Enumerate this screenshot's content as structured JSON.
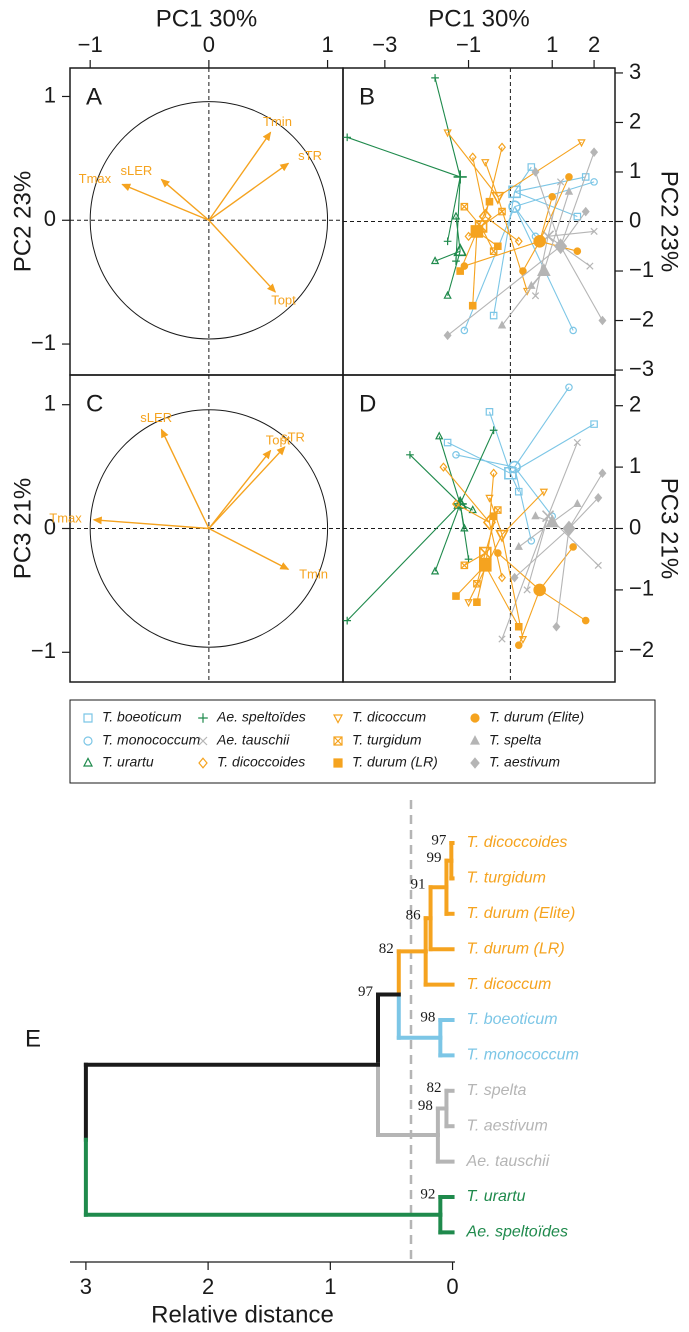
{
  "chart_data": [
    {
      "type": "arrows",
      "panel": "A",
      "xlabel": "PC1 30%",
      "ylabel": "PC2 23%",
      "color": "#f5a31f",
      "unit_circle": true,
      "zero_lines": true,
      "xlim": [
        -1.17,
        1.13
      ],
      "ylim": [
        -1.25,
        1.23
      ],
      "xticks": [
        {
          "value": -1,
          "label": "−1"
        },
        0,
        1
      ],
      "yticks": [
        {
          "value": -1,
          "label": "−1"
        },
        0,
        1
      ],
      "arrows": [
        {
          "label": "Tmin",
          "x": 0.52,
          "y": 0.71
        },
        {
          "label": "sTR",
          "x": 0.67,
          "y": 0.46
        },
        {
          "label": "sLER",
          "x": -0.4,
          "y": 0.33
        },
        {
          "label": "Tmax",
          "x": -0.73,
          "y": 0.29
        },
        {
          "label": "Topt",
          "x": 0.56,
          "y": -0.58
        }
      ]
    },
    {
      "type": "scatter",
      "panel": "B",
      "xlabel": "PC1 30%",
      "ylabel": "PC2 23%",
      "zero_lines": true,
      "xlim": [
        -4,
        2.5
      ],
      "ylim": [
        -3.1,
        3.1
      ],
      "xticks": [
        {
          "value": -3,
          "label": "−3"
        },
        {
          "value": -1,
          "label": "−1"
        },
        1,
        2
      ],
      "yticks": [
        3,
        2,
        1,
        0,
        {
          "value": -1,
          "label": "−1"
        },
        {
          "value": -2,
          "label": "−2"
        },
        {
          "value": -3,
          "label": "−3"
        }
      ],
      "series": [
        {
          "name": "T. boeoticum",
          "color": "#7cc6e6",
          "marker": "square",
          "centroid": [
            0.1,
            0.6
          ],
          "x": [
            0.5,
            1.8,
            -0.4,
            1.6
          ],
          "y": [
            1.1,
            0.9,
            -1.9,
            0.1
          ]
        },
        {
          "name": "T. monococcum",
          "color": "#7cc6e6",
          "marker": "circle",
          "centroid": [
            0.1,
            0.3
          ],
          "x": [
            -1.1,
            1.5,
            0.6,
            2.0
          ],
          "y": [
            -2.2,
            -2.2,
            -0.3,
            0.8
          ]
        },
        {
          "name": "T. urartu",
          "color": "#1f8a4c",
          "marker": "triangle",
          "centroid": [
            -1.2,
            -0.6
          ],
          "x": [
            -1.5,
            -1.3,
            -1.8
          ],
          "y": [
            -1.5,
            0.1,
            -0.8
          ]
        },
        {
          "name": "Ae. speltoïdes",
          "color": "#1f8a4c",
          "marker": "plus",
          "centroid": [
            -1.2,
            0.9
          ],
          "x": [
            -1.8,
            -3.9,
            -1.5,
            -1.3
          ],
          "y": [
            2.9,
            1.7,
            -0.4,
            -0.8
          ]
        },
        {
          "name": "Ae. tauschii",
          "color": "#b5b5b5",
          "marker": "x",
          "centroid": [
            0.9,
            -0.3
          ],
          "x": [
            1.2,
            2.0,
            0.6,
            1.9
          ],
          "y": [
            0.8,
            -0.2,
            -1.5,
            -0.9
          ]
        },
        {
          "name": "T. dicoccoides",
          "color": "#f5a31f",
          "marker": "diamond",
          "centroid": [
            -0.6,
            0.1
          ],
          "x": [
            -0.9,
            -0.2,
            0.2,
            -1.0
          ],
          "y": [
            1.3,
            1.5,
            -0.4,
            -0.3
          ]
        },
        {
          "name": "T. dicoccum",
          "color": "#f5a31f",
          "marker": "triangle-down",
          "centroid": [
            -0.3,
            0.5
          ],
          "x": [
            -1.5,
            1.7,
            -0.6,
            0.4
          ],
          "y": [
            1.8,
            1.6,
            1.2,
            -1.4
          ]
        },
        {
          "name": "T. turgidum",
          "color": "#f5a31f",
          "marker": "square-x",
          "centroid": [
            -0.7,
            -0.1
          ],
          "x": [
            -0.4,
            -1.1,
            -0.2
          ],
          "y": [
            -0.6,
            0.3,
            0.2
          ]
        },
        {
          "name": "T. durum (LR)",
          "color": "#f5a31f",
          "marker": "square-filled",
          "centroid": [
            -0.8,
            -0.2
          ],
          "x": [
            -1.2,
            -0.5,
            -0.9,
            -0.3
          ],
          "y": [
            -1.0,
            0.4,
            -1.7,
            -0.5
          ]
        },
        {
          "name": "T. durum (Elite)",
          "color": "#f5a31f",
          "marker": "circle-filled",
          "centroid": [
            0.7,
            -0.4
          ],
          "x": [
            1.0,
            1.4,
            1.6,
            -1.1,
            0.3
          ],
          "y": [
            0.5,
            0.9,
            -0.6,
            -0.9,
            -1.0
          ]
        },
        {
          "name": "T. spelta",
          "color": "#b5b5b5",
          "marker": "triangle-filled",
          "centroid": [
            0.8,
            -1.0
          ],
          "x": [
            -0.2,
            1.4,
            0.5
          ],
          "y": [
            -2.1,
            0.6,
            -1.3
          ]
        },
        {
          "name": "T. aestivum",
          "color": "#b5b5b5",
          "marker": "diamond-filled",
          "centroid": [
            1.2,
            -0.5
          ],
          "x": [
            -1.5,
            2.2,
            2.0,
            1.8,
            0.6
          ],
          "y": [
            -2.3,
            -2.0,
            1.4,
            0.2,
            1.0
          ]
        }
      ]
    },
    {
      "type": "arrows",
      "panel": "C",
      "ylabel": "PC3 21%",
      "color": "#f5a31f",
      "unit_circle": true,
      "zero_lines": true,
      "xlim": [
        -1.17,
        1.13
      ],
      "ylim": [
        -1.24,
        1.24
      ],
      "yticks": [
        {
          "value": -1,
          "label": "−1"
        },
        0,
        1
      ],
      "arrows": [
        {
          "label": "sLER",
          "x": -0.4,
          "y": 0.8
        },
        {
          "label": "Tmax",
          "x": -0.97,
          "y": 0.07
        },
        {
          "label": "Topt",
          "x": 0.52,
          "y": 0.63
        },
        {
          "label": "sTR",
          "x": 0.64,
          "y": 0.66
        },
        {
          "label": "Tmin",
          "x": 0.67,
          "y": -0.33
        }
      ]
    },
    {
      "type": "scatter",
      "panel": "D",
      "ylabel": "PC3 21%",
      "zero_lines": true,
      "xlim": [
        -4,
        2.5
      ],
      "ylim": [
        -2.5,
        2.5
      ],
      "yticks": [
        2,
        1,
        0,
        {
          "value": -1,
          "label": "−1"
        },
        {
          "value": -2,
          "label": "−2"
        }
      ],
      "series": [
        {
          "color": "#7cc6e6",
          "marker": "square",
          "centroid": [
            0.0,
            0.9
          ],
          "x": [
            -0.5,
            2.0,
            -1.5,
            0.2
          ],
          "y": [
            1.9,
            1.7,
            1.4,
            0.6
          ]
        },
        {
          "color": "#7cc6e6",
          "marker": "circle",
          "centroid": [
            0.1,
            1.0
          ],
          "x": [
            1.4,
            -1.3,
            0.5,
            1.0
          ],
          "y": [
            2.3,
            1.2,
            -0.2,
            0.2
          ]
        },
        {
          "color": "#1f8a4c",
          "marker": "triangle",
          "centroid": [
            -1.2,
            0.4
          ],
          "x": [
            -1.7,
            -1.8,
            -0.9,
            -1.1
          ],
          "y": [
            1.5,
            -0.7,
            0.3,
            0.0
          ]
        },
        {
          "color": "#1f8a4c",
          "marker": "plus",
          "centroid": [
            -1.2,
            0.4
          ],
          "x": [
            -3.9,
            -2.4,
            -0.4,
            -1.0
          ],
          "y": [
            -1.5,
            1.2,
            1.6,
            -0.5
          ]
        },
        {
          "color": "#b5b5b5",
          "marker": "x",
          "centroid": [
            0.9,
            0.2
          ],
          "x": [
            1.6,
            2.1,
            -0.2,
            0.4
          ],
          "y": [
            1.4,
            -0.6,
            -1.8,
            -1.0
          ]
        },
        {
          "color": "#f5a31f",
          "marker": "diamond",
          "centroid": [
            -0.5,
            0.1
          ],
          "x": [
            -1.6,
            -0.4,
            -0.2,
            -1.3
          ],
          "y": [
            1.0,
            0.9,
            -0.8,
            0.4
          ]
        },
        {
          "color": "#f5a31f",
          "marker": "triangle-down",
          "centroid": [
            -0.2,
            -0.1
          ],
          "x": [
            -1.0,
            0.8,
            -0.5,
            0.3
          ],
          "y": [
            -1.2,
            0.6,
            0.5,
            -1.8
          ]
        },
        {
          "color": "#f5a31f",
          "marker": "square-x",
          "centroid": [
            -0.6,
            -0.4
          ],
          "x": [
            -1.1,
            -0.3,
            -0.8
          ],
          "y": [
            -0.6,
            0.3,
            -0.9
          ]
        },
        {
          "color": "#f5a31f",
          "marker": "square-filled",
          "centroid": [
            -0.6,
            -0.6
          ],
          "x": [
            -1.3,
            -0.8,
            0.2,
            -0.4
          ],
          "y": [
            -1.1,
            -1.2,
            -1.6,
            0.2
          ]
        },
        {
          "color": "#f5a31f",
          "marker": "circle-filled",
          "centroid": [
            0.7,
            -1.0
          ],
          "x": [
            1.5,
            0.2,
            1.8,
            -0.3
          ],
          "y": [
            -0.3,
            -1.9,
            -1.5,
            -0.4
          ]
        },
        {
          "color": "#b5b5b5",
          "marker": "triangle-filled",
          "centroid": [
            1.0,
            0.1
          ],
          "x": [
            0.2,
            1.6,
            0.6
          ],
          "y": [
            -0.3,
            0.4,
            0.2
          ]
        },
        {
          "color": "#b5b5b5",
          "marker": "diamond-filled",
          "centroid": [
            1.4,
            0.0
          ],
          "x": [
            2.2,
            0.1,
            2.1,
            1.1
          ],
          "y": [
            0.9,
            -0.8,
            0.5,
            -1.6
          ]
        }
      ]
    },
    {
      "type": "dendrogram",
      "panel": "E",
      "xlabel": "Relative distance",
      "xlim": [
        3.13,
        -0.02
      ],
      "xticks": [
        3,
        2,
        1,
        0
      ],
      "cutoff": 0.34,
      "leaves": [
        {
          "name": "T. dicoccoides",
          "color": "#f5a31f"
        },
        {
          "name": "T. turgidum",
          "color": "#f5a31f"
        },
        {
          "name": "T. durum (Elite)",
          "color": "#f5a31f"
        },
        {
          "name": "T. durum (LR)",
          "color": "#f5a31f"
        },
        {
          "name": "T. dicoccum",
          "color": "#f5a31f"
        },
        {
          "name": "T. boeoticum",
          "color": "#7cc6e6"
        },
        {
          "name": "T. monococcum",
          "color": "#7cc6e6"
        },
        {
          "name": "T. spelta",
          "color": "#b5b5b5"
        },
        {
          "name": "T. aestivum",
          "color": "#b5b5b5"
        },
        {
          "name": "Ae. tauschii",
          "color": "#b5b5b5"
        },
        {
          "name": "T. urartu",
          "color": "#1f8a4c"
        },
        {
          "name": "Ae. speltoïdes",
          "color": "#1f8a4c"
        }
      ],
      "nodes": [
        {
          "children": [
            0,
            1
          ],
          "height": 0.01,
          "label": 97,
          "color": "#f5a31f"
        },
        {
          "children": [
            12,
            2
          ],
          "height": 0.05,
          "label": 99,
          "color": "#f5a31f"
        },
        {
          "children": [
            13,
            3
          ],
          "height": 0.18,
          "label": 91,
          "color": "#f5a31f"
        },
        {
          "children": [
            14,
            4
          ],
          "height": 0.22,
          "label": 86,
          "color": "#f5a31f"
        },
        {
          "children": [
            5,
            6
          ],
          "height": 0.1,
          "label": 98,
          "color": "#7cc6e6"
        },
        {
          "children": [
            15,
            16
          ],
          "height": 0.44,
          "label": 82,
          "color": "#1a1a1a"
        },
        {
          "children": [
            7,
            8
          ],
          "height": 0.05,
          "label": 82,
          "color": "#b5b5b5"
        },
        {
          "children": [
            18,
            9
          ],
          "height": 0.12,
          "label": 98,
          "color": "#b5b5b5"
        },
        {
          "children": [
            17,
            19
          ],
          "height": 0.61,
          "label": 97,
          "color": "#1a1a1a"
        },
        {
          "children": [
            10,
            11
          ],
          "height": 0.1,
          "label": 92,
          "color": "#1f8a4c"
        },
        {
          "children": [
            20,
            21
          ],
          "height": 3.0,
          "color": "#1a1a1a"
        }
      ]
    }
  ]
}
